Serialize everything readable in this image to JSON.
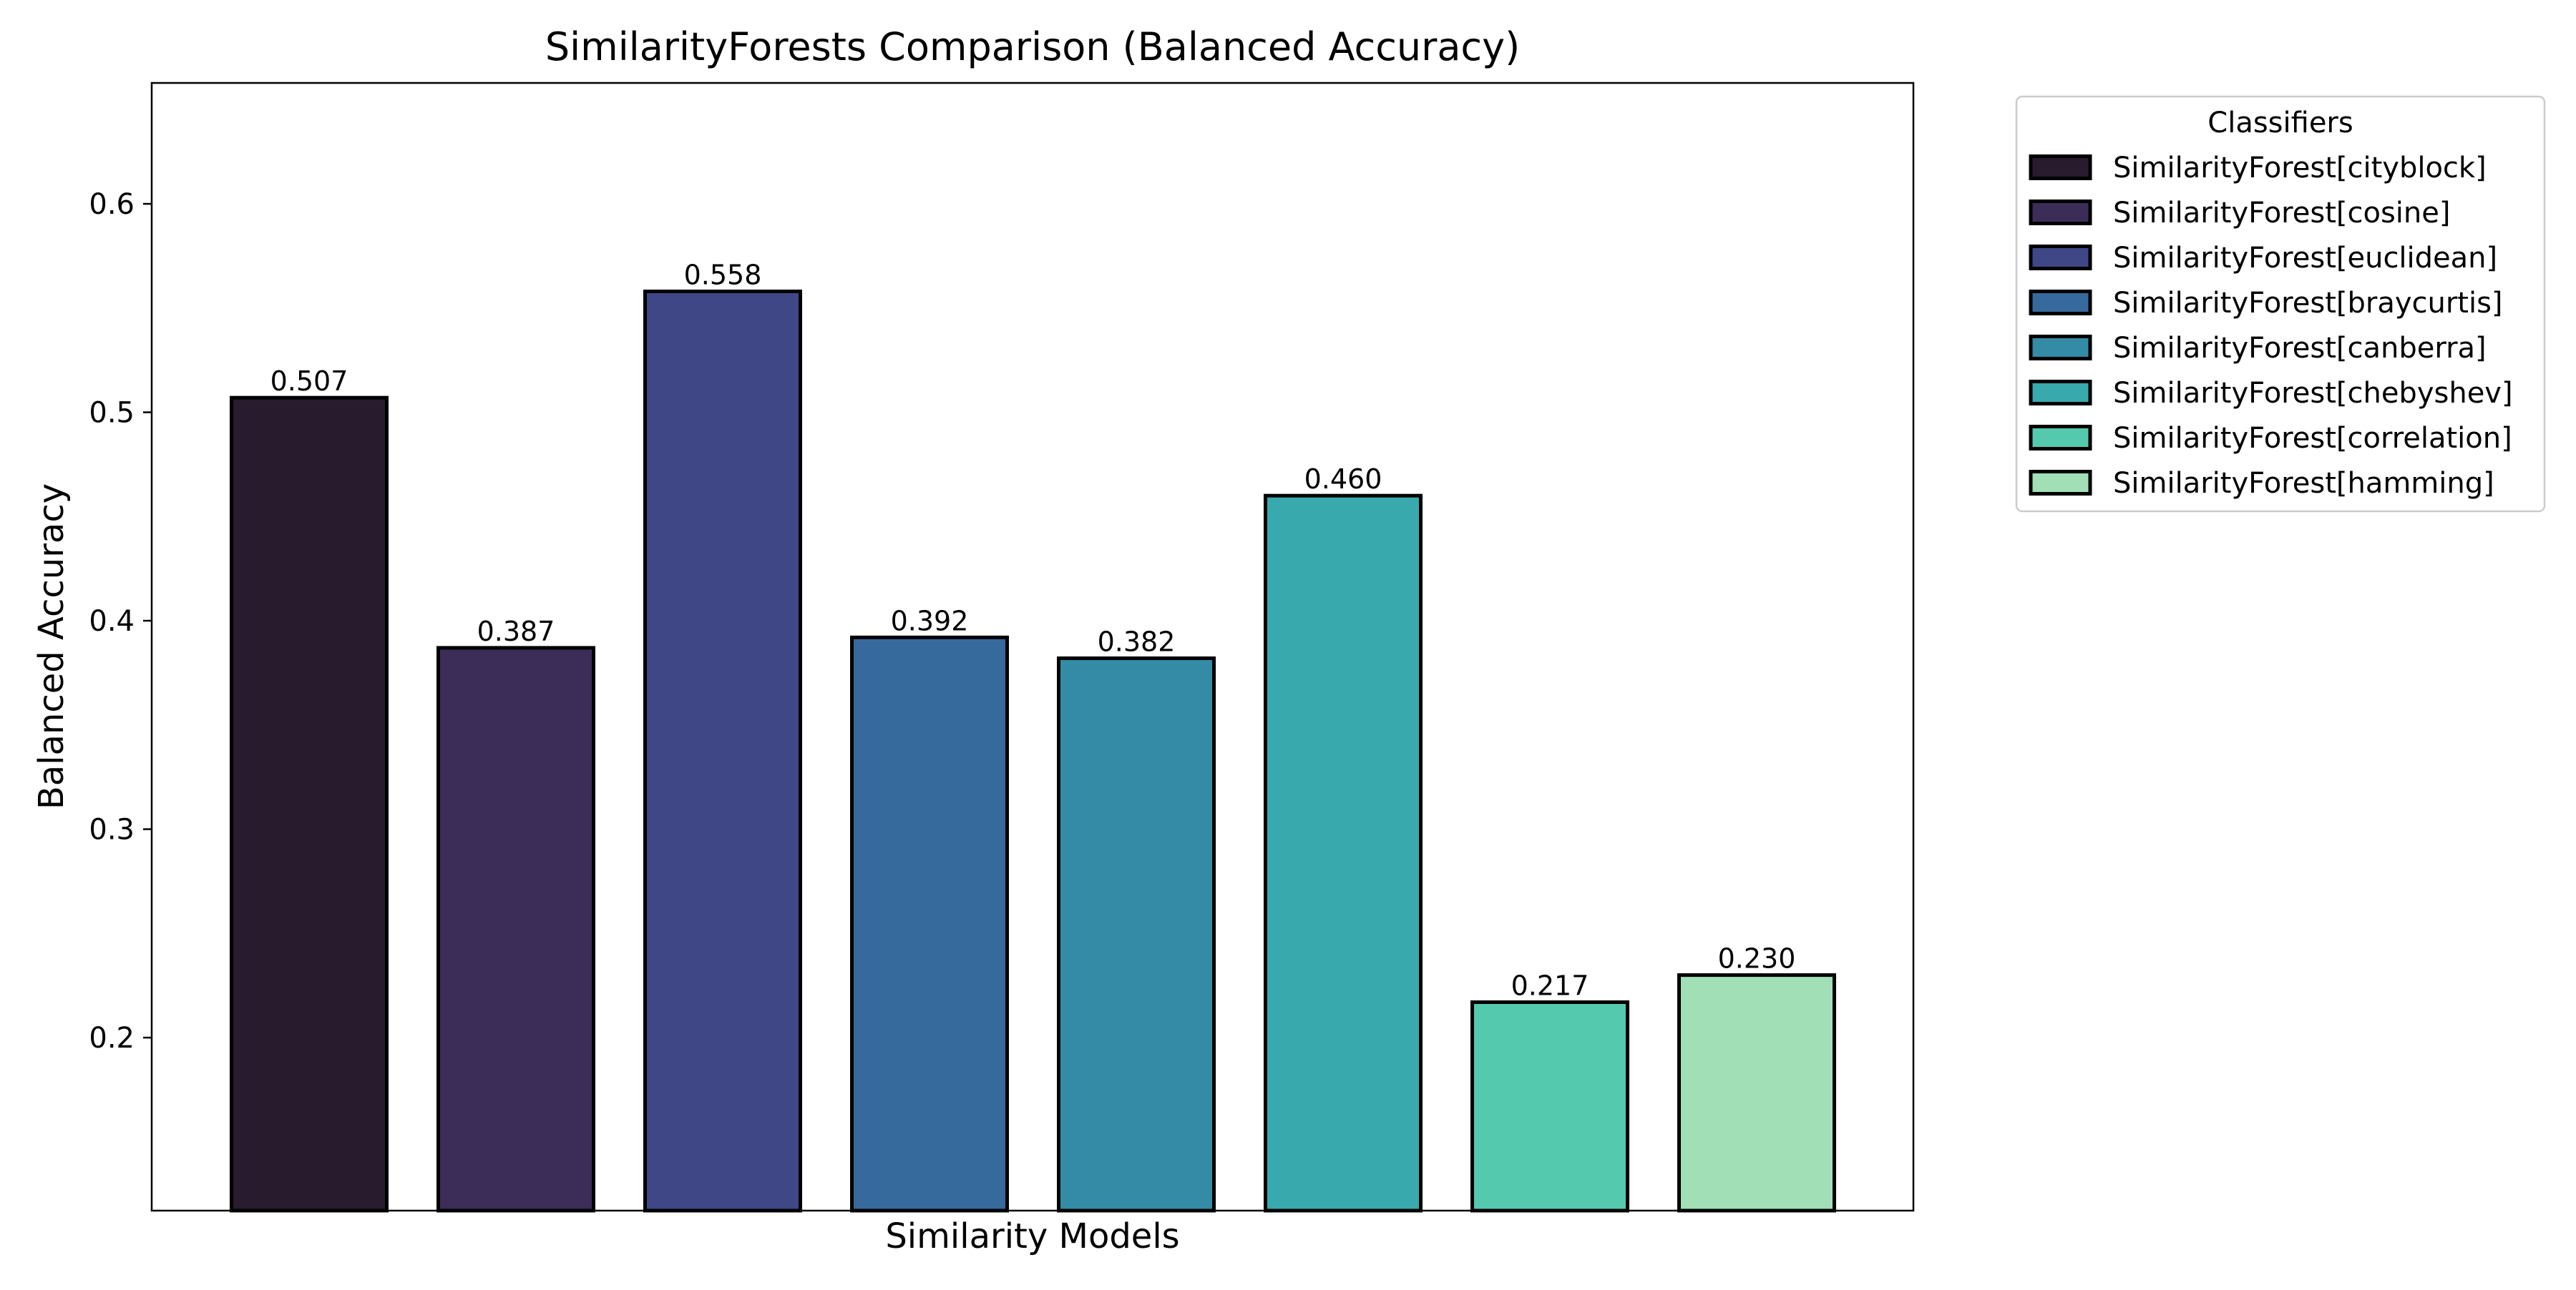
{
  "chart_data": {
    "type": "bar",
    "title": "SimilarityForests Comparison (Balanced Accuracy)",
    "xlabel": "Similarity Models",
    "ylabel": "Balanced Accuracy",
    "ylim": [
      0.117,
      0.658
    ],
    "yticks": [
      0.2,
      0.3,
      0.4,
      0.5,
      0.6
    ],
    "ytick_labels": [
      "0.2",
      "0.3",
      "0.4",
      "0.5",
      "0.6"
    ],
    "grid": false,
    "legend": {
      "title": "Classifiers",
      "placement": "outside-top-right"
    },
    "categories": [
      "SimilarityForest[cityblock]",
      "SimilarityForest[cosine]",
      "SimilarityForest[euclidean]",
      "SimilarityForest[braycurtis]",
      "SimilarityForest[canberra]",
      "SimilarityForest[chebyshev]",
      "SimilarityForest[correlation]",
      "SimilarityForest[hamming]"
    ],
    "values": [
      0.507,
      0.387,
      0.558,
      0.392,
      0.382,
      0.46,
      0.217,
      0.23
    ],
    "value_labels": [
      "0.507",
      "0.387",
      "0.558",
      "0.392",
      "0.382",
      "0.460",
      "0.217",
      "0.230"
    ],
    "colors": [
      "#281b2e",
      "#3c2d58",
      "#404787",
      "#376a9c",
      "#338ba5",
      "#38a9ac",
      "#54c9ae",
      "#a1dfb7"
    ],
    "edge_color": "#000000"
  }
}
